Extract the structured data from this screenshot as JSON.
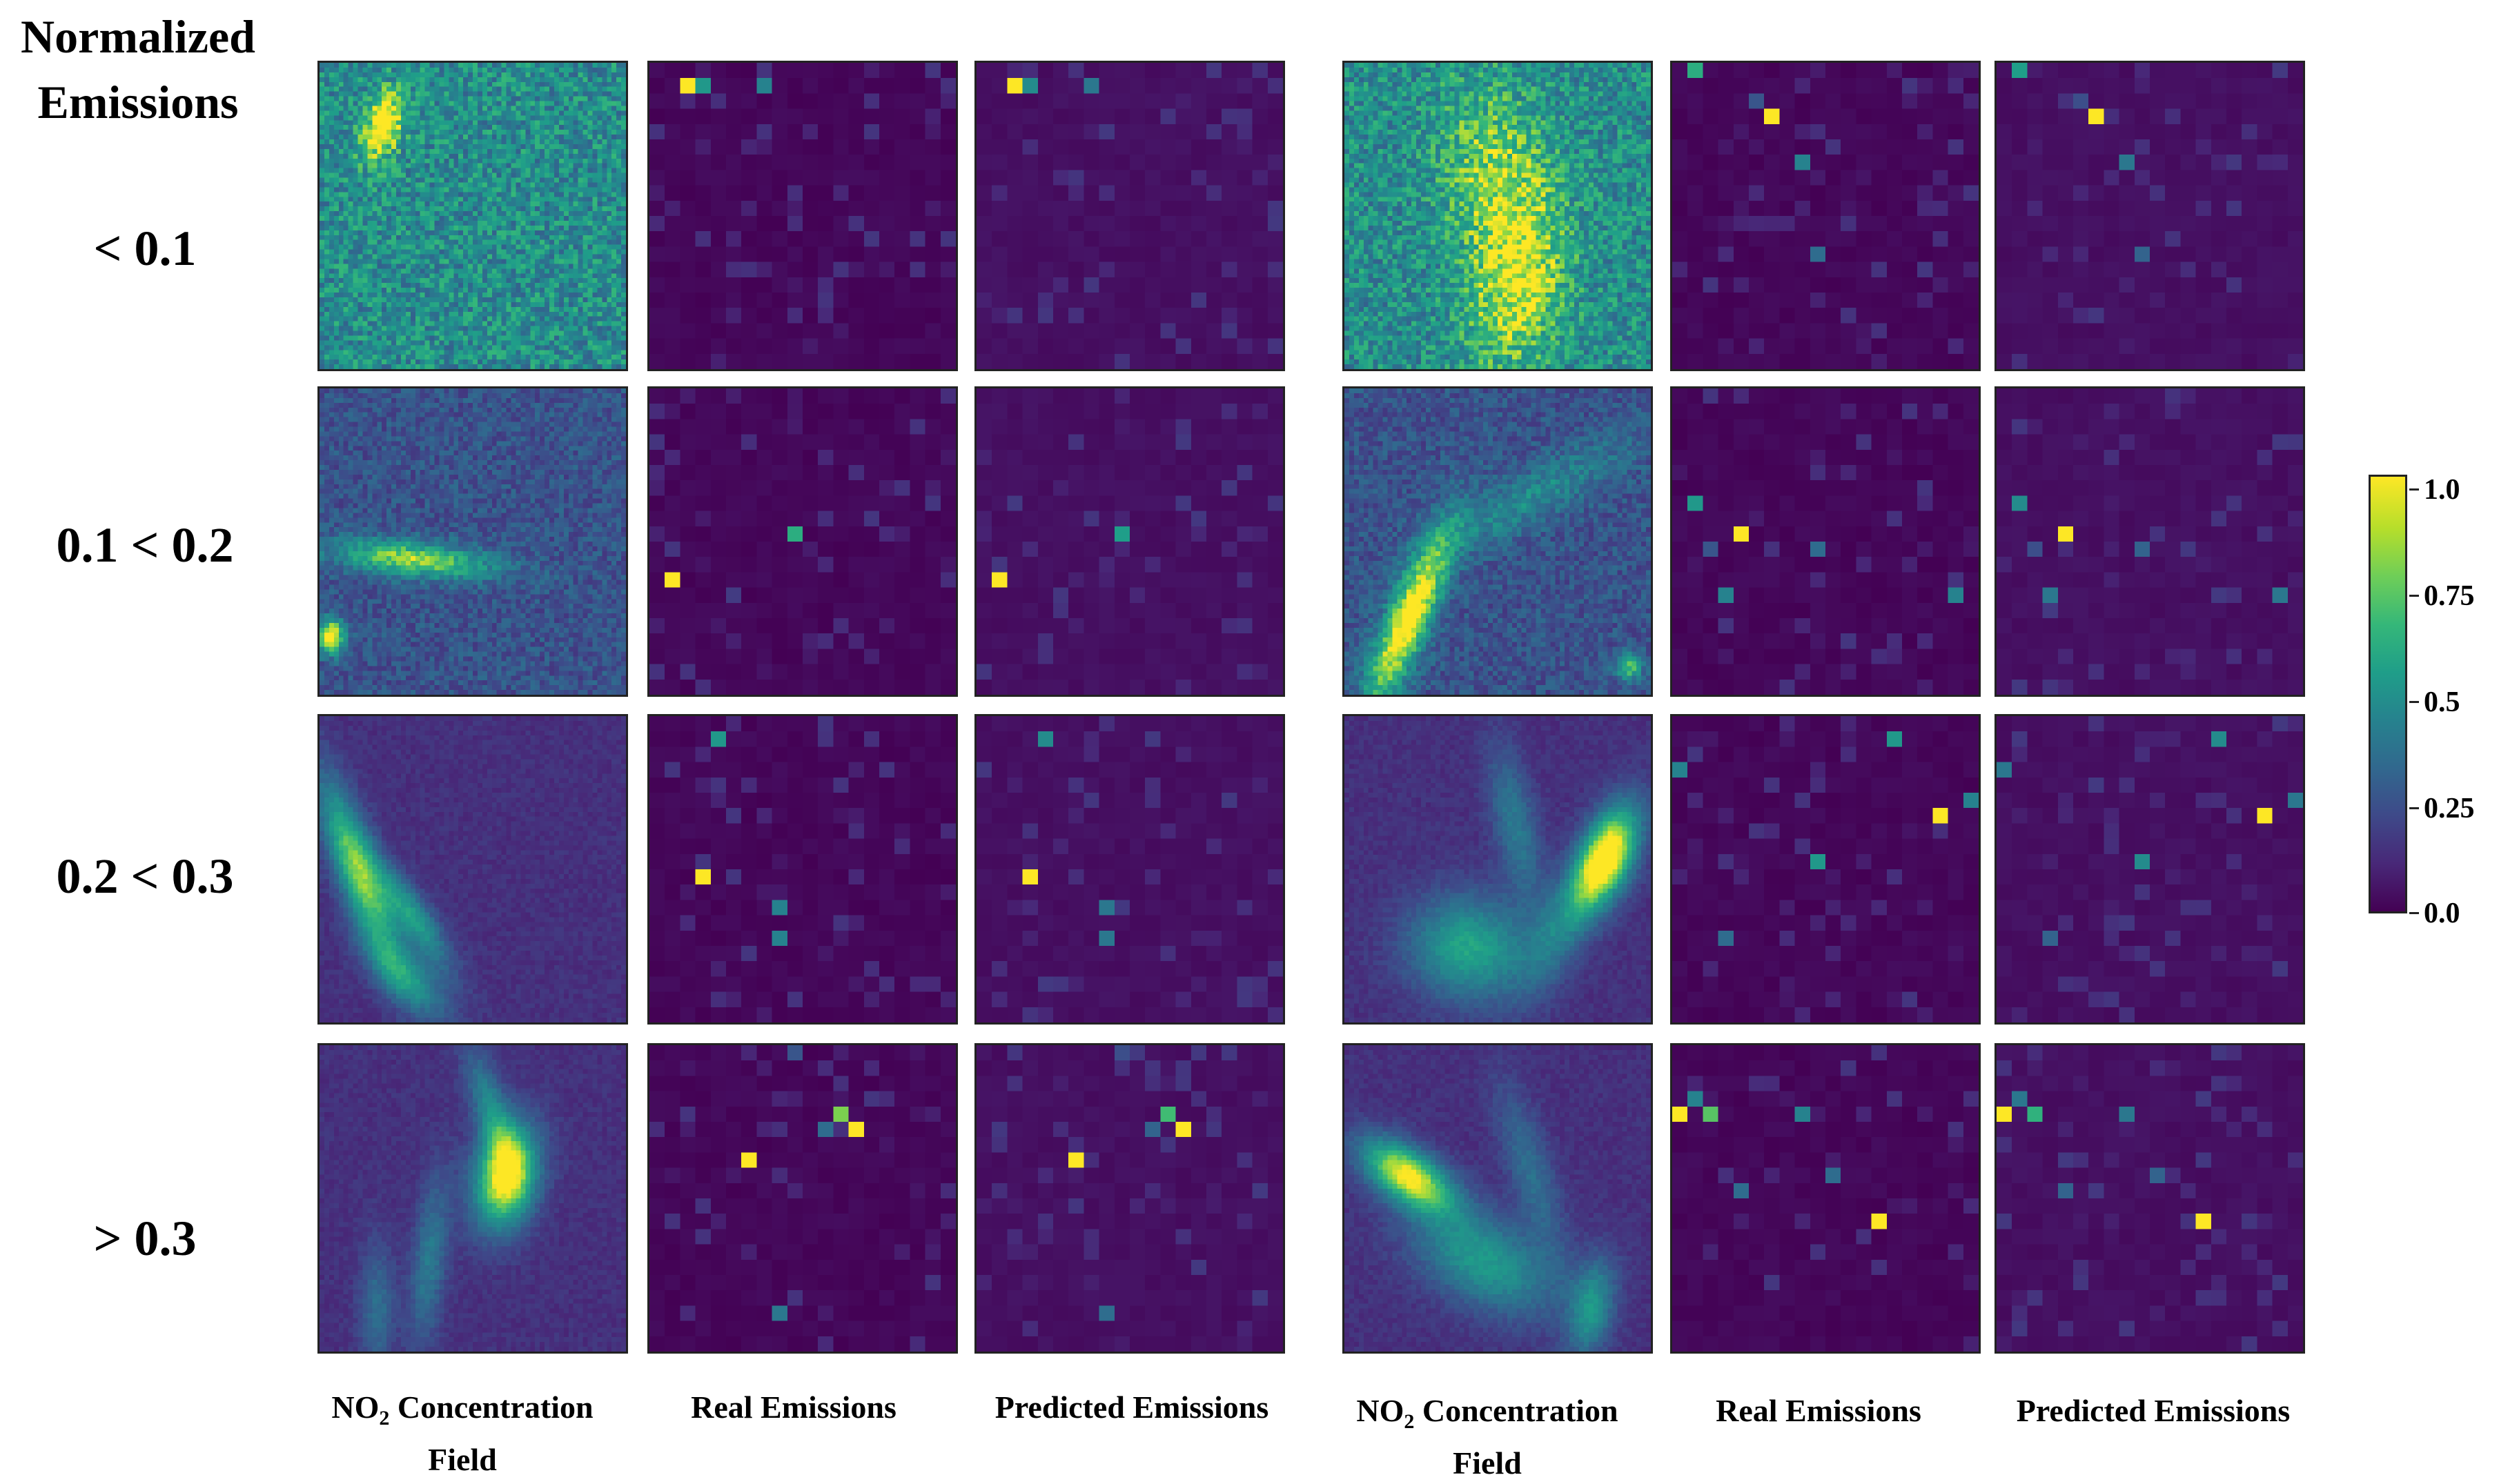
{
  "heading": [
    "Normalized",
    "Emissions"
  ],
  "row_labels": [
    "< 0.1",
    "0.1 < 0.2",
    "0.2 < 0.3",
    "> 0.3"
  ],
  "column_labels": [
    {
      "main": "NO",
      "sub": "2",
      "rest": " Concentration",
      "line2": "Field"
    },
    {
      "main": "Real Emissions",
      "sub": "",
      "rest": "",
      "line2": ""
    },
    {
      "main": "Predicted Emissions",
      "sub": "",
      "rest": "",
      "line2": ""
    },
    {
      "main": "NO",
      "sub": "2",
      "rest": " Concentration",
      "line2": "Field"
    },
    {
      "main": "Real Emissions",
      "sub": "",
      "rest": "",
      "line2": ""
    },
    {
      "main": "Predicted Emissions",
      "sub": "",
      "rest": "",
      "line2": ""
    }
  ],
  "colorbar": {
    "colormap": "viridis",
    "ticks": [
      "1.0",
      "0.75",
      "0.5",
      "0.25",
      "0.0"
    ],
    "tick_values": [
      1.0,
      0.75,
      0.5,
      0.25,
      0.0
    ],
    "range": [
      0,
      1
    ]
  },
  "colors": {
    "background": "#440154",
    "low": "#482878",
    "mid": "#21918c",
    "high": "#fde725"
  }
}
